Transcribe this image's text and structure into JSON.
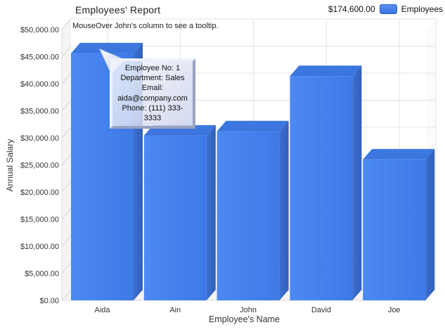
{
  "header": {
    "title": "Employees' Report",
    "legend": {
      "total": "$174,600.00",
      "series_label": "Employees",
      "swatch_color": "#3e7be8"
    }
  },
  "plot": {
    "subtitle": "MouseOver John's column to see a tooltip.",
    "x_axis_title": "Employee's Name",
    "y_axis_title": "Annual Salary"
  },
  "tooltip": {
    "lines": [
      "Employee No: 1",
      "Department: Sales",
      "Email:",
      "aida@company.com",
      "Phone: (111) 333-3333"
    ]
  },
  "chart_data": {
    "type": "bar",
    "style": "3d-column",
    "title": "Employees' Report",
    "subtitle": "MouseOver John's column to see a tooltip.",
    "categories": [
      "Aida",
      "Ain",
      "John",
      "David",
      "Joe"
    ],
    "series": [
      {
        "name": "Employees",
        "values": [
          45600,
          30400,
          31200,
          41400,
          26000
        ]
      }
    ],
    "total_label": "$174,600.00",
    "xlabel": "Employee's Name",
    "ylabel": "Annual Salary",
    "ylim": [
      0,
      50000
    ],
    "y_tick_step": 5000,
    "y_tick_format": "currency-2dp",
    "grid": true,
    "legend_position": "top-right",
    "colors": {
      "bar_front_light": "#4c89f3",
      "bar_front_dark": "#3d7ae6",
      "bar_top": "#3a74dc",
      "bar_side_light": "#3b6fd0",
      "bar_side_dark": "#3260ba",
      "gridline": "#e3e3e3",
      "wall": "#f4f4f4",
      "axis_text": "#333333"
    }
  }
}
